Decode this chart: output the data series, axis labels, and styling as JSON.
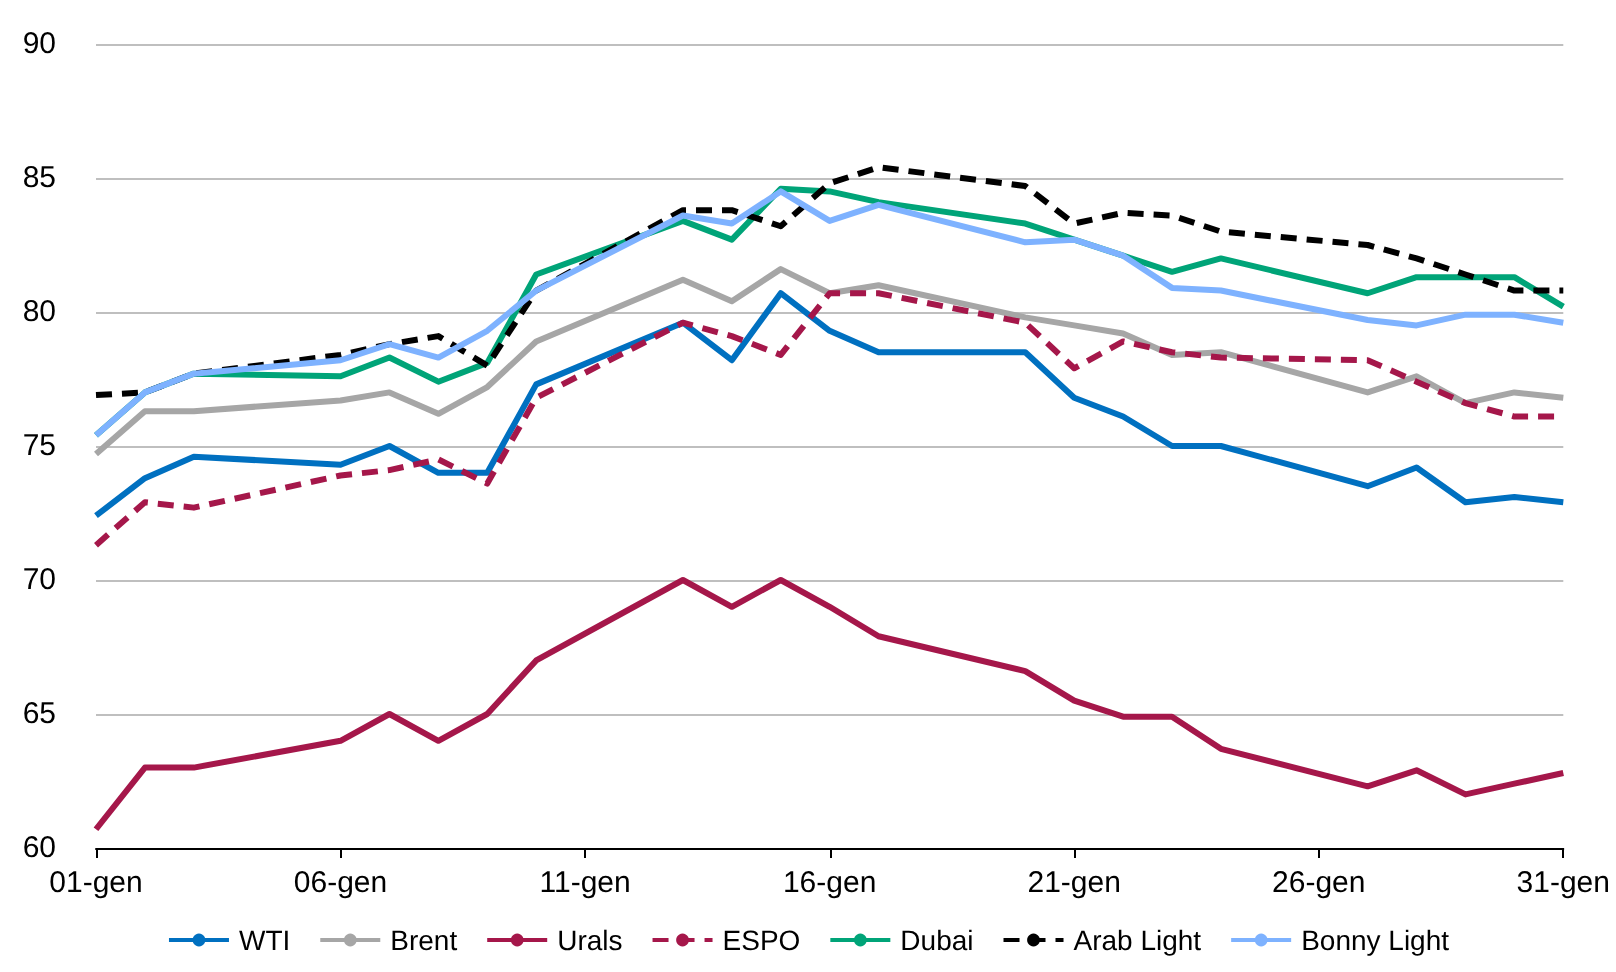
{
  "chart_data": {
    "type": "line",
    "x": [
      "--01-01",
      "--01-02",
      "--01-03",
      "--01-06",
      "--01-07",
      "--01-08",
      "--01-09",
      "--01-10",
      "--01-13",
      "--01-14",
      "--01-15",
      "--01-16",
      "--01-17",
      "--01-20",
      "--01-21",
      "--01-22",
      "--01-23",
      "--01-24",
      "--01-27",
      "--01-28",
      "--01-29",
      "--01-30",
      "--01-31"
    ],
    "xlim": [
      "--01-01",
      "--01-31"
    ],
    "xticks": [
      {
        "value": "--01-01",
        "label": "01-gen"
      },
      {
        "value": "--01-06",
        "label": "06-gen"
      },
      {
        "value": "--01-11",
        "label": "11-gen"
      },
      {
        "value": "--01-16",
        "label": "16-gen"
      },
      {
        "value": "--01-21",
        "label": "21-gen"
      },
      {
        "value": "--01-26",
        "label": "26-gen"
      },
      {
        "value": "--01-31",
        "label": "31-gen"
      }
    ],
    "ylim": [
      60,
      90
    ],
    "yticks": [
      60,
      65,
      70,
      75,
      80,
      85,
      90
    ],
    "grid": "y",
    "legend": "bottom",
    "marker": "none",
    "series": [
      {
        "name": "WTI",
        "color": "#0070c0",
        "line_style": "solid",
        "values": [
          72.4,
          73.8,
          74.6,
          74.3,
          75.0,
          74.0,
          74.0,
          77.3,
          79.6,
          78.2,
          80.7,
          79.3,
          78.5,
          78.5,
          76.8,
          76.1,
          75.0,
          75.0,
          73.5,
          74.2,
          72.9,
          73.1,
          72.9
        ]
      },
      {
        "name": "Brent",
        "color": "#a6a6a6",
        "line_style": "solid",
        "values": [
          74.7,
          76.3,
          76.3,
          76.7,
          77.0,
          76.2,
          77.2,
          78.9,
          81.2,
          80.4,
          81.6,
          80.7,
          81.0,
          79.8,
          79.5,
          79.2,
          78.4,
          78.5,
          77.0,
          77.6,
          76.6,
          77.0,
          76.8
        ]
      },
      {
        "name": "Urals",
        "color": "#a5174a",
        "line_style": "solid",
        "values": [
          60.7,
          63.0,
          63.0,
          64.0,
          65.0,
          64.0,
          65.0,
          67.0,
          70.0,
          69.0,
          70.0,
          69.0,
          67.9,
          66.6,
          65.5,
          64.9,
          64.9,
          63.7,
          62.3,
          62.9,
          62.0,
          62.4,
          62.8
        ]
      },
      {
        "name": "ESPO",
        "color": "#a5174a",
        "line_style": "dashed",
        "values": [
          71.3,
          72.9,
          72.7,
          73.9,
          74.1,
          74.5,
          73.6,
          76.8,
          79.6,
          79.1,
          78.4,
          80.7,
          80.7,
          79.6,
          77.9,
          78.9,
          78.5,
          78.3,
          78.2,
          77.4,
          76.6,
          76.1,
          76.1
        ]
      },
      {
        "name": "Dubai",
        "color": "#00a478",
        "line_style": "solid",
        "values": [
          75.4,
          77.0,
          77.7,
          77.6,
          78.3,
          77.4,
          78.1,
          81.4,
          83.4,
          82.7,
          84.6,
          84.5,
          84.1,
          83.3,
          82.7,
          82.1,
          81.5,
          82.0,
          80.7,
          81.3,
          81.3,
          81.3,
          80.2
        ]
      },
      {
        "name": "Arab Light",
        "color": "#000000",
        "line_style": "dashed",
        "values": [
          76.9,
          77.0,
          77.7,
          78.4,
          78.8,
          79.1,
          78.0,
          80.8,
          83.8,
          83.8,
          83.2,
          84.8,
          85.4,
          84.7,
          83.3,
          83.7,
          83.6,
          83.0,
          82.5,
          82.0,
          81.4,
          80.8,
          80.8
        ]
      },
      {
        "name": "Bonny Light",
        "color": "#7eb2ff",
        "line_style": "solid",
        "values": [
          75.4,
          77.0,
          77.7,
          78.2,
          78.8,
          78.3,
          79.3,
          80.8,
          83.6,
          83.3,
          84.5,
          83.4,
          84.0,
          82.6,
          82.7,
          82.1,
          80.9,
          80.8,
          79.7,
          79.5,
          79.9,
          79.9,
          79.6
        ]
      }
    ]
  }
}
